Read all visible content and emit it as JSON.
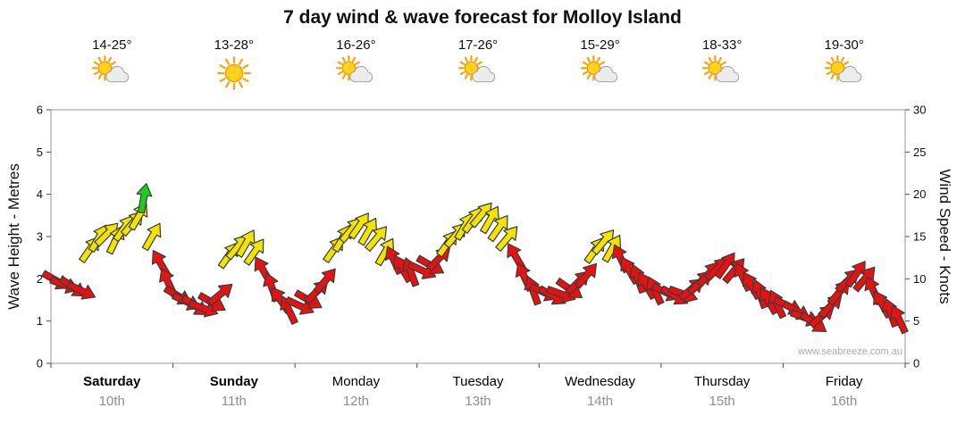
{
  "title": "7 day wind & wave forecast for Molloy Island",
  "watermark": "www.seabreeze.com.au",
  "axes": {
    "left_label": "Wave Height - Metres",
    "right_label": "Wind Speed - Knots",
    "left_ticks": [
      "0",
      "1",
      "2",
      "3",
      "4",
      "5",
      "6"
    ],
    "right_ticks": [
      "0",
      "5",
      "10",
      "15",
      "20",
      "25",
      "30"
    ]
  },
  "days": [
    {
      "name": "Saturday",
      "date": "10th",
      "temp": "14-25°",
      "icon": "partly-cloudy",
      "bold": true
    },
    {
      "name": "Sunday",
      "date": "11th",
      "temp": "13-28°",
      "icon": "sunny",
      "bold": true
    },
    {
      "name": "Monday",
      "date": "12th",
      "temp": "16-26°",
      "icon": "partly-cloudy",
      "bold": false
    },
    {
      "name": "Tuesday",
      "date": "13th",
      "temp": "17-26°",
      "icon": "partly-cloudy",
      "bold": false
    },
    {
      "name": "Wednesday",
      "date": "14th",
      "temp": "15-29°",
      "icon": "partly-cloudy",
      "bold": false
    },
    {
      "name": "Thursday",
      "date": "15th",
      "temp": "18-33°",
      "icon": "partly-cloudy",
      "bold": false
    },
    {
      "name": "Friday",
      "date": "16th",
      "temp": "19-30°",
      "icon": "partly-cloudy",
      "bold": false
    }
  ],
  "colors": {
    "r": "#e51212",
    "y": "#f2e300",
    "g": "#1ecb1e",
    "outline": "#3b3b3b",
    "frame": "#999999",
    "tick": "#2b4bb3"
  },
  "chart_data": {
    "type": "scatter",
    "marker": "wind-arrow",
    "title": "7 day wind & wave forecast for Molloy Island",
    "categories": [
      "Saturday",
      "Sunday",
      "Monday",
      "Tuesday",
      "Wednesday",
      "Thursday",
      "Friday"
    ],
    "left_axis": {
      "label": "Wave Height - Metres",
      "min": 0,
      "max": 6
    },
    "right_axis": {
      "label": "Wind Speed - Knots",
      "min": 0,
      "max": 30
    },
    "grid": false,
    "legend": false,
    "point_format": [
      "day_position_0to7",
      "wind_speed_knots",
      "arrow_direction_deg",
      "color_key"
    ],
    "points": [
      [
        0.04,
        9.8,
        30,
        "r"
      ],
      [
        0.11,
        9.3,
        20,
        "r"
      ],
      [
        0.18,
        9.0,
        35,
        "r"
      ],
      [
        0.25,
        8.6,
        25,
        "r"
      ],
      [
        0.32,
        13.5,
        -55,
        "y"
      ],
      [
        0.39,
        14.8,
        -60,
        "y"
      ],
      [
        0.46,
        15.3,
        -45,
        "y"
      ],
      [
        0.53,
        14.6,
        -65,
        "y"
      ],
      [
        0.6,
        16.0,
        -55,
        "y"
      ],
      [
        0.67,
        16.6,
        -50,
        "y"
      ],
      [
        0.72,
        17.4,
        -60,
        "y"
      ],
      [
        0.76,
        19.5,
        -80,
        "g"
      ],
      [
        0.83,
        15.0,
        -60,
        "y"
      ],
      [
        0.9,
        11.8,
        -120,
        "r"
      ],
      [
        0.96,
        9.6,
        -115,
        "r"
      ],
      [
        1.04,
        8.0,
        30,
        "r"
      ],
      [
        1.11,
        7.3,
        25,
        "r"
      ],
      [
        1.18,
        6.8,
        35,
        "r"
      ],
      [
        1.25,
        6.5,
        20,
        "r"
      ],
      [
        1.32,
        7.2,
        30,
        "r"
      ],
      [
        1.39,
        8.2,
        -40,
        "r"
      ],
      [
        1.46,
        12.8,
        -55,
        "y"
      ],
      [
        1.53,
        13.8,
        -50,
        "y"
      ],
      [
        1.6,
        14.2,
        -60,
        "y"
      ],
      [
        1.67,
        13.2,
        -55,
        "y"
      ],
      [
        1.74,
        11.0,
        -120,
        "r"
      ],
      [
        1.81,
        9.0,
        -110,
        "r"
      ],
      [
        1.88,
        7.5,
        -125,
        "r"
      ],
      [
        1.95,
        6.3,
        -115,
        "r"
      ],
      [
        2.04,
        6.8,
        25,
        "r"
      ],
      [
        2.11,
        7.5,
        30,
        "r"
      ],
      [
        2.18,
        8.5,
        -45,
        "r"
      ],
      [
        2.25,
        9.8,
        -50,
        "r"
      ],
      [
        2.32,
        13.5,
        -55,
        "y"
      ],
      [
        2.39,
        14.8,
        -60,
        "y"
      ],
      [
        2.46,
        15.8,
        -50,
        "y"
      ],
      [
        2.53,
        16.3,
        -55,
        "y"
      ],
      [
        2.6,
        15.6,
        -60,
        "y"
      ],
      [
        2.67,
        14.8,
        -50,
        "y"
      ],
      [
        2.74,
        13.2,
        -60,
        "y"
      ],
      [
        2.81,
        12.2,
        -115,
        "r"
      ],
      [
        2.88,
        11.2,
        -120,
        "r"
      ],
      [
        2.95,
        10.8,
        -110,
        "r"
      ],
      [
        3.04,
        11.0,
        25,
        "r"
      ],
      [
        3.11,
        11.6,
        30,
        "r"
      ],
      [
        3.18,
        12.4,
        -45,
        "r"
      ],
      [
        3.25,
        14.2,
        -55,
        "y"
      ],
      [
        3.32,
        15.2,
        -50,
        "y"
      ],
      [
        3.39,
        16.2,
        -60,
        "y"
      ],
      [
        3.46,
        17.0,
        -55,
        "y"
      ],
      [
        3.53,
        17.6,
        -50,
        "y"
      ],
      [
        3.6,
        17.0,
        -60,
        "y"
      ],
      [
        3.67,
        16.0,
        -55,
        "y"
      ],
      [
        3.74,
        14.8,
        -50,
        "y"
      ],
      [
        3.81,
        12.6,
        -120,
        "r"
      ],
      [
        3.88,
        10.2,
        -115,
        "r"
      ],
      [
        3.95,
        8.6,
        -110,
        "r"
      ],
      [
        4.04,
        8.4,
        25,
        "r"
      ],
      [
        4.11,
        8.0,
        30,
        "r"
      ],
      [
        4.18,
        8.2,
        20,
        "r"
      ],
      [
        4.25,
        8.8,
        35,
        "r"
      ],
      [
        4.32,
        9.6,
        -45,
        "r"
      ],
      [
        4.39,
        10.4,
        -50,
        "r"
      ],
      [
        4.46,
        13.4,
        -55,
        "y"
      ],
      [
        4.53,
        14.4,
        -50,
        "y"
      ],
      [
        4.6,
        13.6,
        -60,
        "y"
      ],
      [
        4.67,
        12.4,
        -115,
        "r"
      ],
      [
        4.74,
        11.0,
        -120,
        "r"
      ],
      [
        4.81,
        10.0,
        -110,
        "r"
      ],
      [
        4.88,
        9.2,
        -120,
        "r"
      ],
      [
        4.95,
        8.6,
        -115,
        "r"
      ],
      [
        5.04,
        8.4,
        25,
        "r"
      ],
      [
        5.11,
        8.0,
        30,
        "r"
      ],
      [
        5.18,
        8.2,
        20,
        "r"
      ],
      [
        5.25,
        8.8,
        -40,
        "r"
      ],
      [
        5.32,
        9.6,
        -45,
        "r"
      ],
      [
        5.39,
        10.6,
        -50,
        "r"
      ],
      [
        5.46,
        11.2,
        -45,
        "r"
      ],
      [
        5.53,
        11.6,
        -55,
        "r"
      ],
      [
        5.6,
        11.0,
        -50,
        "r"
      ],
      [
        5.67,
        10.2,
        -115,
        "r"
      ],
      [
        5.74,
        9.2,
        -120,
        "r"
      ],
      [
        5.81,
        8.2,
        -110,
        "r"
      ],
      [
        5.88,
        7.4,
        -120,
        "r"
      ],
      [
        5.95,
        7.0,
        -115,
        "r"
      ],
      [
        6.04,
        6.8,
        25,
        "r"
      ],
      [
        6.11,
        6.2,
        30,
        "r"
      ],
      [
        6.18,
        5.4,
        20,
        "r"
      ],
      [
        6.25,
        4.8,
        35,
        "r"
      ],
      [
        6.32,
        5.6,
        -40,
        "r"
      ],
      [
        6.39,
        6.8,
        -45,
        "r"
      ],
      [
        6.46,
        8.4,
        -50,
        "r"
      ],
      [
        6.53,
        9.8,
        -45,
        "r"
      ],
      [
        6.6,
        10.6,
        -55,
        "r"
      ],
      [
        6.67,
        10.0,
        -50,
        "r"
      ],
      [
        6.74,
        8.6,
        -115,
        "r"
      ],
      [
        6.81,
        7.0,
        -120,
        "r"
      ],
      [
        6.88,
        6.0,
        -110,
        "r"
      ],
      [
        6.95,
        5.2,
        -115,
        "r"
      ]
    ]
  }
}
